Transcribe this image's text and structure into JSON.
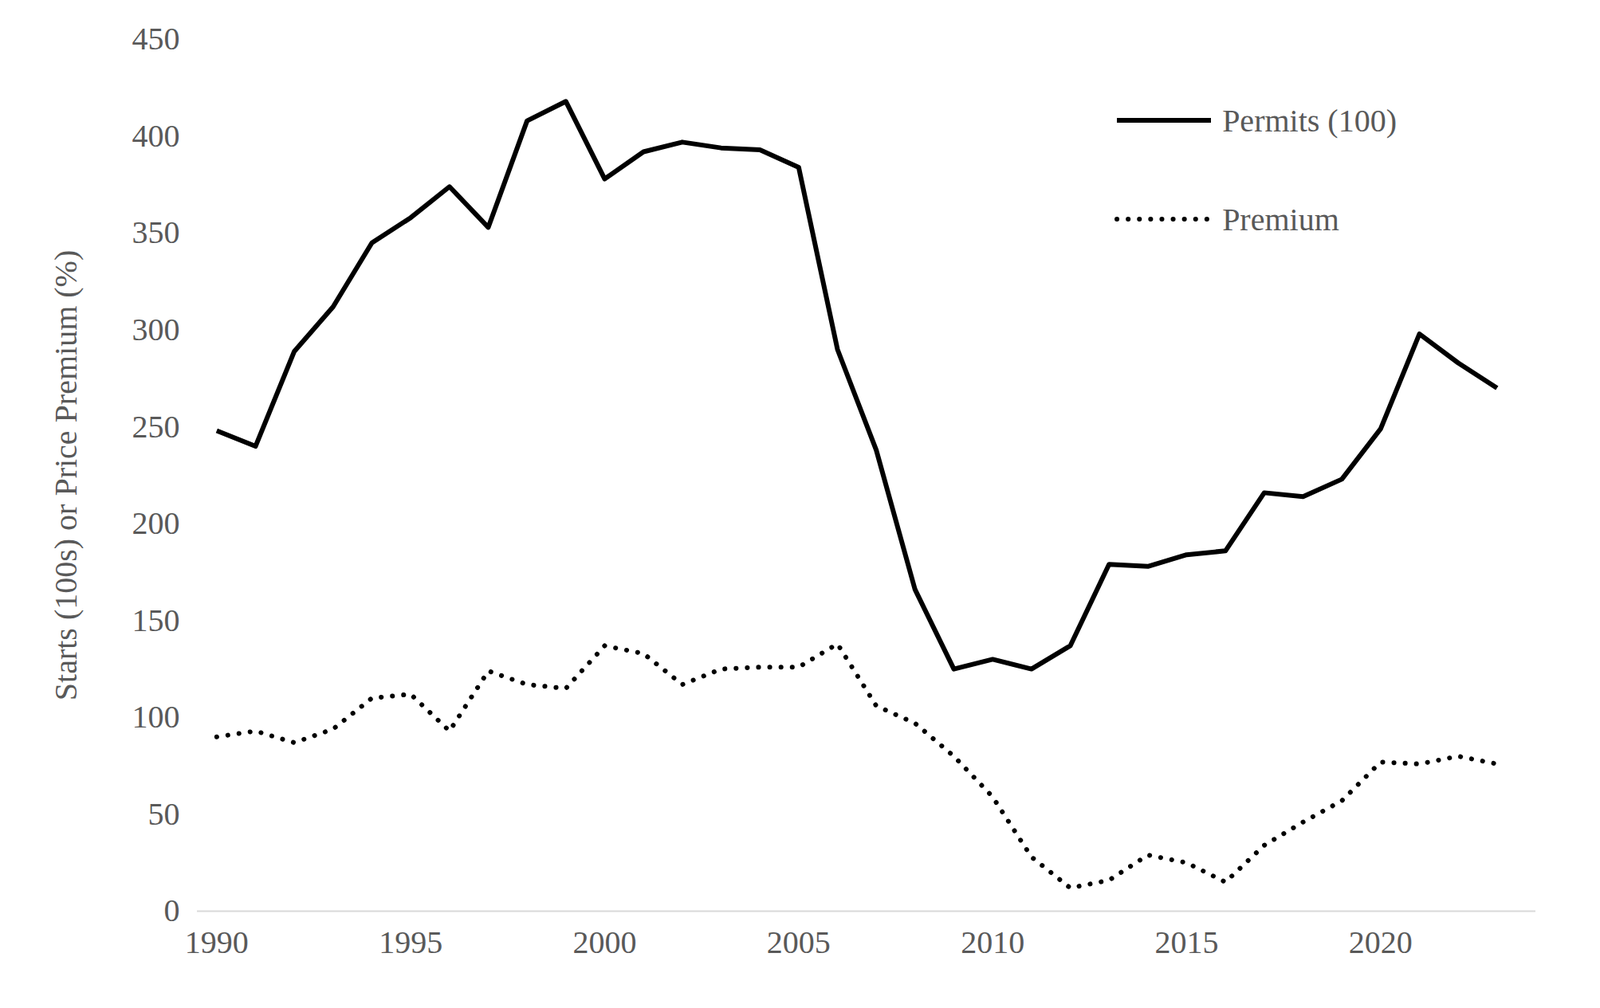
{
  "chart_data": {
    "type": "line",
    "x": [
      1990,
      1991,
      1992,
      1993,
      1994,
      1995,
      1996,
      1997,
      1998,
      1999,
      2000,
      2001,
      2002,
      2003,
      2004,
      2005,
      2006,
      2007,
      2008,
      2009,
      2010,
      2011,
      2012,
      2013,
      2014,
      2015,
      2016,
      2017,
      2018,
      2019,
      2020,
      2021,
      2022,
      2023
    ],
    "series": [
      {
        "name": "Permits (100)",
        "color": "#000000",
        "line_style": "solid",
        "values": [
          248,
          240,
          289,
          312,
          345,
          358,
          374,
          353,
          408,
          418,
          378,
          392,
          397,
          394,
          393,
          384,
          290,
          238,
          166,
          125,
          130,
          125,
          137,
          179,
          178,
          184,
          186,
          216,
          214,
          223,
          249,
          298,
          283,
          270
        ]
      },
      {
        "name": "Premium",
        "color": "#000000",
        "line_style": "dotted",
        "values": [
          90,
          93,
          87,
          94,
          110,
          112,
          93,
          124,
          117,
          115,
          137,
          133,
          117,
          125,
          126,
          126,
          138,
          106,
          97,
          80,
          59,
          28,
          12,
          16,
          29,
          25,
          15,
          34,
          46,
          57,
          77,
          76,
          80,
          76
        ]
      }
    ],
    "y_label": "Starts (100s) or Price Premium (%)",
    "xlim": [
      1989.5,
      2024
    ],
    "xticks": [
      1990,
      1995,
      2000,
      2005,
      2010,
      2015,
      2020
    ],
    "ylim": [
      0,
      450
    ],
    "yticks": [
      0,
      50,
      100,
      150,
      200,
      250,
      300,
      350,
      400,
      450
    ],
    "legend": "top-right",
    "grid": false
  }
}
